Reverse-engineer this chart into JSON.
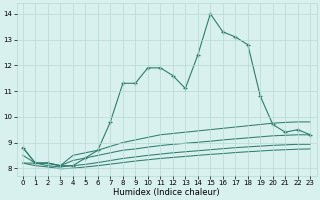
{
  "xlabel": "Humidex (Indice chaleur)",
  "x_values": [
    0,
    1,
    2,
    3,
    4,
    5,
    6,
    7,
    8,
    9,
    10,
    11,
    12,
    13,
    14,
    15,
    16,
    17,
    18,
    19,
    20,
    21,
    22,
    23
  ],
  "line_main": [
    8.8,
    8.2,
    8.2,
    8.1,
    8.1,
    8.4,
    8.7,
    9.8,
    11.3,
    11.3,
    11.9,
    11.9,
    11.6,
    11.1,
    12.4,
    14.0,
    13.3,
    13.1,
    12.8,
    10.8,
    9.7,
    9.4,
    9.5,
    9.3
  ],
  "curve1": [
    8.8,
    8.2,
    8.2,
    8.1,
    8.5,
    8.6,
    8.7,
    8.85,
    9.0,
    9.1,
    9.2,
    9.3,
    9.35,
    9.4,
    9.45,
    9.5,
    9.55,
    9.6,
    9.65,
    9.7,
    9.75,
    9.78,
    9.8,
    9.8
  ],
  "curve2": [
    8.5,
    8.2,
    8.2,
    8.1,
    8.3,
    8.4,
    8.5,
    8.6,
    8.7,
    8.75,
    8.82,
    8.88,
    8.93,
    8.97,
    9.01,
    9.05,
    9.1,
    9.14,
    9.18,
    9.22,
    9.26,
    9.28,
    9.3,
    9.3
  ],
  "curve3": [
    8.2,
    8.2,
    8.1,
    8.05,
    8.1,
    8.15,
    8.22,
    8.3,
    8.38,
    8.44,
    8.5,
    8.55,
    8.6,
    8.64,
    8.68,
    8.72,
    8.76,
    8.8,
    8.83,
    8.86,
    8.89,
    8.91,
    8.93,
    8.93
  ],
  "curve4": [
    8.2,
    8.1,
    8.05,
    7.98,
    8.0,
    8.05,
    8.1,
    8.16,
    8.22,
    8.28,
    8.33,
    8.38,
    8.42,
    8.46,
    8.5,
    8.54,
    8.57,
    8.61,
    8.64,
    8.67,
    8.7,
    8.72,
    8.74,
    8.75
  ],
  "color": "#2e7d6e",
  "bg_color": "#d8f0ee",
  "grid_color": "#b8d8d4",
  "ylim": [
    7.7,
    14.4
  ],
  "xlim": [
    -0.5,
    23.5
  ],
  "yticks": [
    8,
    9,
    10,
    11,
    12,
    13,
    14
  ],
  "xticks": [
    0,
    1,
    2,
    3,
    4,
    5,
    6,
    7,
    8,
    9,
    10,
    11,
    12,
    13,
    14,
    15,
    16,
    17,
    18,
    19,
    20,
    21,
    22,
    23
  ]
}
